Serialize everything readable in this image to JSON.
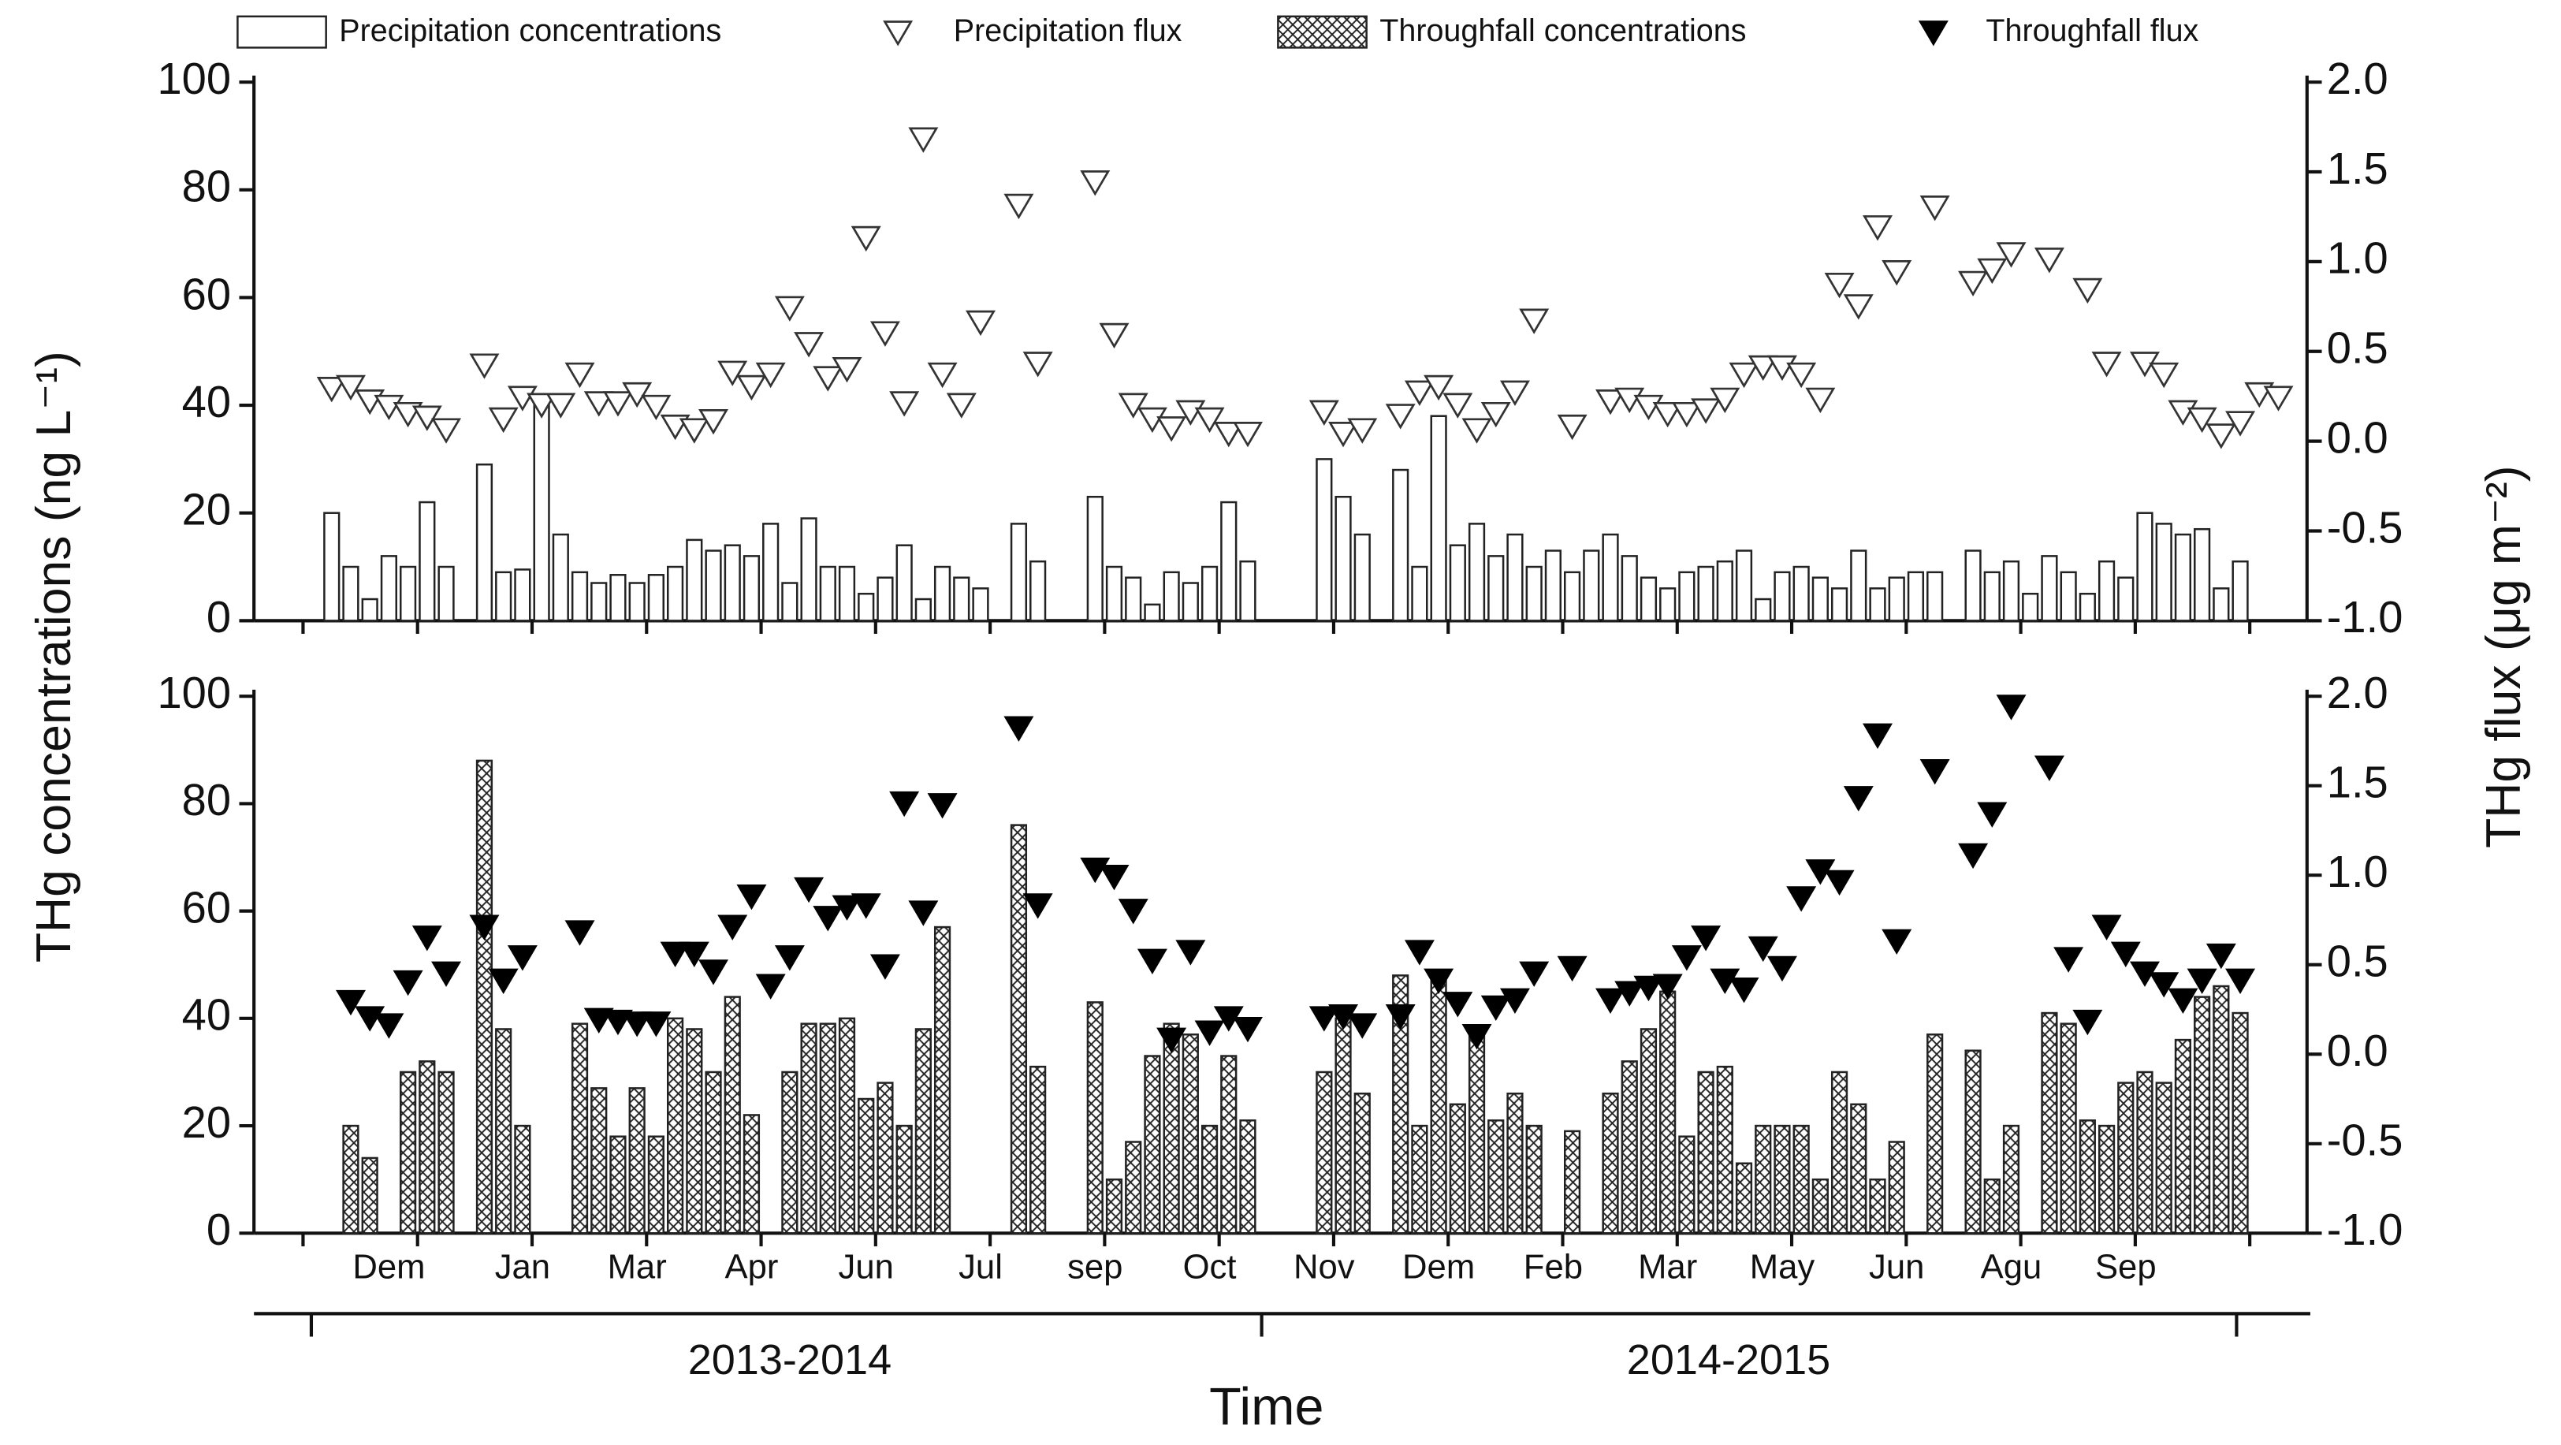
{
  "chart_data": {
    "type": "combo",
    "y_label": "THg concentrations (ng L⁻¹)",
    "y2_label": "THg flux (μg m⁻²)",
    "x_label": "Time",
    "groups": [
      "2013-2014",
      "2014-2015"
    ],
    "categories": [
      null,
      null,
      null,
      null,
      null,
      null,
      null,
      "Dem",
      null,
      null,
      null,
      null,
      null,
      null,
      "Jan",
      null,
      null,
      null,
      null,
      null,
      "Mar",
      null,
      null,
      null,
      null,
      null,
      "Apr",
      null,
      null,
      null,
      null,
      null,
      "Jun",
      null,
      null,
      null,
      null,
      null,
      "Jul",
      null,
      null,
      null,
      null,
      null,
      "sep",
      null,
      null,
      null,
      null,
      null,
      "Oct",
      null,
      null,
      null,
      null,
      null,
      "Nov",
      null,
      null,
      null,
      null,
      null,
      "Dem",
      null,
      null,
      null,
      null,
      null,
      "Feb",
      null,
      null,
      null,
      null,
      null,
      "Mar",
      null,
      null,
      null,
      null,
      null,
      "May",
      null,
      null,
      null,
      null,
      null,
      "Jun",
      null,
      null,
      null,
      null,
      null,
      "Agu",
      null,
      null,
      null,
      null,
      null,
      "Sep",
      null,
      null,
      null,
      null,
      null,
      null,
      null,
      null,
      null
    ],
    "panels": [
      {
        "ylim": [
          0,
          100
        ],
        "yticks": [
          0,
          20,
          40,
          60,
          80,
          100
        ],
        "y2lim": [
          -1,
          2
        ],
        "y2ticks": [
          {
            "value": -1,
            "label": "-1.0"
          },
          -0.5,
          {
            "value": 0,
            "label": "0.0"
          },
          0.5,
          {
            "value": 1,
            "label": "1.0"
          },
          1.5,
          {
            "value": 2,
            "label": "2.0"
          }
        ],
        "series": [
          {
            "name": "Precipitation concentrations",
            "type": "bar",
            "color": "#222222",
            "hatch": false,
            "values": [
              null,
              null,
              null,
              null,
              20,
              10,
              4,
              12,
              10,
              22,
              10,
              null,
              29,
              9,
              9.5,
              40,
              16,
              9,
              7,
              8.5,
              7,
              8.5,
              10,
              15,
              13,
              14,
              12,
              18,
              7,
              19,
              10,
              10,
              5,
              8,
              14,
              4,
              10,
              8,
              6,
              null,
              18,
              11,
              null,
              null,
              23,
              10,
              8,
              3,
              9,
              7,
              10,
              22,
              11,
              null,
              null,
              null,
              30,
              23,
              16,
              null,
              28,
              10,
              38,
              14,
              18,
              12,
              16,
              10,
              13,
              9,
              13,
              16,
              12,
              8,
              6,
              9,
              10,
              11,
              13,
              4,
              9,
              10,
              8,
              6,
              13,
              6,
              8,
              9,
              9,
              null,
              13,
              9,
              11,
              5,
              12,
              9,
              5,
              11,
              8,
              20,
              18,
              16,
              17,
              6,
              11,
              null,
              null,
              null
            ]
          },
          {
            "name": "Precipitation flux",
            "type": "scatter",
            "axis": "y2",
            "color": "#333333",
            "marker": "open",
            "values": [
              null,
              null,
              null,
              null,
              0.29,
              0.3,
              0.22,
              0.19,
              0.15,
              0.13,
              0.06,
              null,
              0.42,
              0.12,
              0.24,
              0.2,
              0.2,
              0.37,
              0.21,
              0.21,
              0.26,
              0.19,
              0.08,
              0.06,
              0.11,
              0.38,
              0.3,
              0.37,
              0.74,
              0.54,
              0.35,
              0.4,
              1.13,
              0.6,
              0.21,
              1.68,
              0.37,
              0.2,
              0.66,
              null,
              1.31,
              0.43,
              null,
              null,
              1.44,
              0.59,
              0.2,
              0.12,
              0.07,
              0.16,
              0.12,
              0.04,
              0.04,
              null,
              null,
              null,
              0.16,
              0.04,
              0.06,
              null,
              0.14,
              0.27,
              0.3,
              0.2,
              0.06,
              0.15,
              0.27,
              0.67,
              null,
              0.08,
              null,
              0.22,
              0.23,
              0.19,
              0.15,
              0.15,
              0.17,
              0.23,
              0.37,
              0.41,
              0.41,
              0.37,
              0.23,
              0.87,
              0.75,
              1.19,
              0.94,
              null,
              1.3,
              null,
              0.88,
              0.95,
              1.04,
              null,
              1.01,
              null,
              0.84,
              0.43,
              null,
              0.43,
              0.37,
              0.16,
              0.12,
              0.03,
              0.1,
              0.26,
              0.24,
              null
            ]
          }
        ]
      },
      {
        "ylim": [
          0,
          100
        ],
        "yticks": [
          0,
          20,
          40,
          60,
          80,
          100
        ],
        "y2lim": [
          -1,
          2
        ],
        "y2ticks": [
          {
            "value": -1,
            "label": "-1.0"
          },
          -0.5,
          {
            "value": 0,
            "label": "0.0"
          },
          0.5,
          {
            "value": 1,
            "label": "1.0"
          },
          1.5,
          {
            "value": 2,
            "label": "2.0"
          }
        ],
        "series": [
          {
            "name": "Throughfall concentrations",
            "type": "bar",
            "color": "#222222",
            "hatch": true,
            "values": [
              null,
              null,
              null,
              null,
              null,
              20,
              14,
              null,
              30,
              32,
              30,
              null,
              88,
              38,
              20,
              null,
              null,
              39,
              27,
              18,
              27,
              18,
              40,
              38,
              30,
              44,
              22,
              null,
              30,
              39,
              39,
              40,
              25,
              28,
              20,
              38,
              57,
              null,
              null,
              null,
              76,
              31,
              null,
              null,
              43,
              10,
              17,
              33,
              39,
              37,
              20,
              33,
              21,
              null,
              null,
              null,
              30,
              40,
              26,
              null,
              48,
              20,
              47,
              24,
              37,
              21,
              26,
              20,
              null,
              19,
              null,
              26,
              32,
              38,
              45,
              18,
              30,
              31,
              13,
              20,
              20,
              20,
              10,
              30,
              24,
              10,
              17,
              null,
              37,
              null,
              34,
              10,
              20,
              null,
              41,
              39,
              21,
              20,
              28,
              30,
              28,
              36,
              44,
              46,
              41,
              null,
              null,
              null
            ]
          },
          {
            "name": "Throughfall flux",
            "type": "scatter",
            "axis": "y2",
            "color": "#000000",
            "marker": "filled",
            "values": [
              null,
              null,
              null,
              null,
              null,
              0.29,
              0.2,
              0.16,
              0.4,
              0.65,
              0.45,
              null,
              0.71,
              0.41,
              0.54,
              null,
              null,
              0.68,
              0.19,
              0.18,
              0.17,
              0.17,
              0.56,
              0.56,
              0.46,
              0.71,
              0.88,
              0.38,
              0.54,
              0.92,
              0.76,
              0.82,
              0.83,
              0.49,
              1.4,
              0.79,
              1.39,
              null,
              null,
              null,
              1.82,
              0.83,
              null,
              null,
              1.03,
              0.99,
              0.8,
              0.52,
              0.08,
              0.57,
              0.12,
              0.2,
              0.14,
              null,
              null,
              null,
              0.2,
              0.21,
              0.16,
              null,
              0.21,
              0.57,
              0.41,
              0.28,
              0.1,
              0.26,
              0.3,
              0.45,
              null,
              0.48,
              null,
              0.3,
              0.34,
              0.37,
              0.38,
              0.54,
              0.65,
              0.41,
              0.36,
              0.59,
              0.48,
              0.87,
              1.02,
              0.96,
              1.43,
              1.78,
              0.63,
              null,
              1.58,
              null,
              1.11,
              1.34,
              1.94,
              null,
              1.6,
              0.53,
              0.18,
              0.71,
              0.56,
              0.45,
              0.39,
              0.3,
              0.41,
              0.55,
              0.41,
              null,
              null,
              null
            ]
          }
        ]
      }
    ]
  }
}
